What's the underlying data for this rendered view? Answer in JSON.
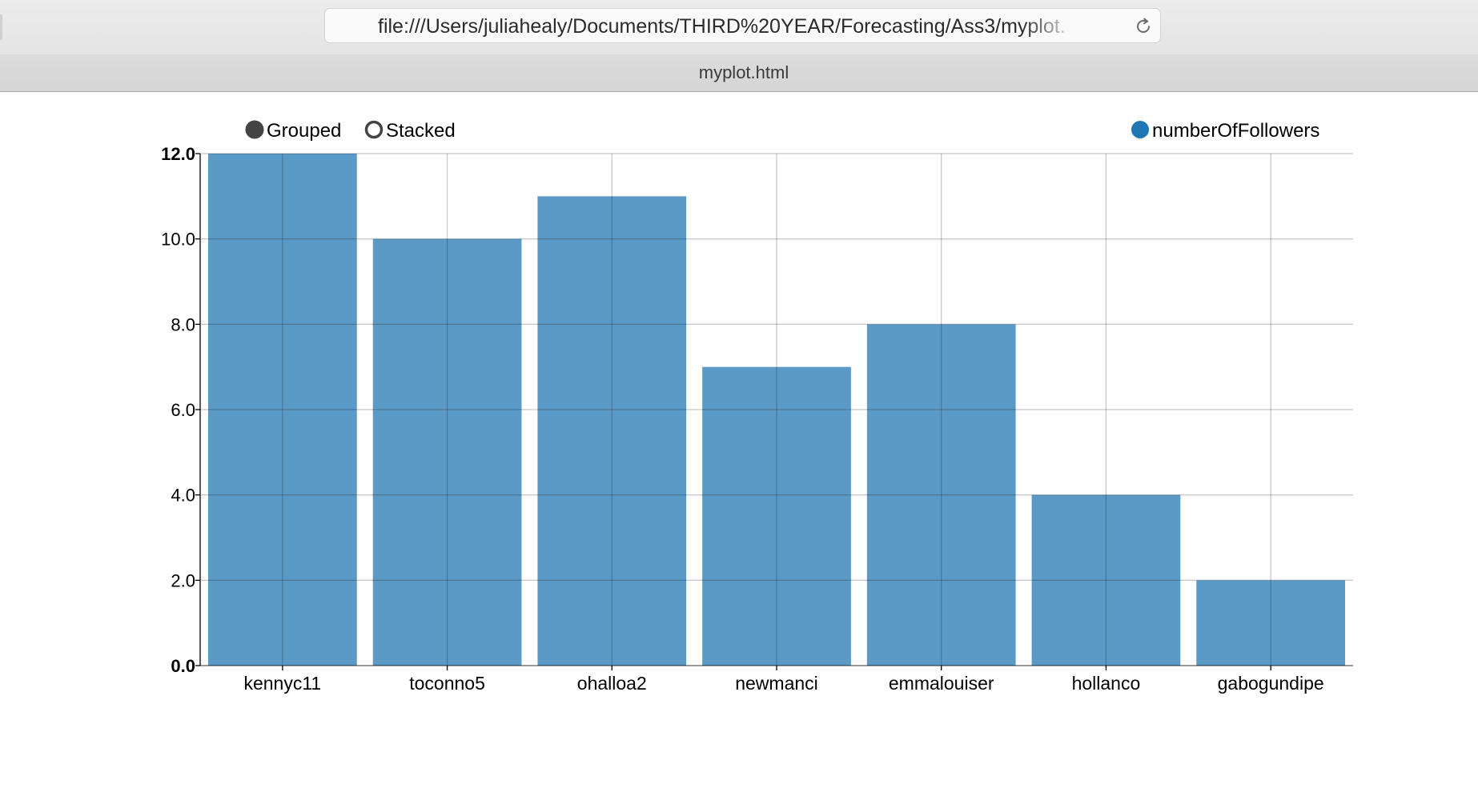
{
  "browser": {
    "url": "file:///Users/juliahealy/Documents/THIRD%20YEAR/Forecasting/Ass3/myplot.html",
    "tab_title": "myplot.html"
  },
  "controls": {
    "grouped_label": "Grouped",
    "stacked_label": "Stacked",
    "selected": "Grouped"
  },
  "legend": {
    "series_label": "numberOfFollowers",
    "color": "#1f77b4",
    "placement": "top-right"
  },
  "chart_data": {
    "type": "bar",
    "categories": [
      "kennyc11",
      "toconno5",
      "ohalloa2",
      "newmanci",
      "emmalouiser",
      "hollanco",
      "gabogundipe"
    ],
    "series": [
      {
        "name": "numberOfFollowers",
        "values": [
          12,
          10,
          11,
          7,
          8,
          4,
          2
        ],
        "color": "#5b9ac6"
      }
    ],
    "y_ticks": [
      "0.0",
      "2.0",
      "4.0",
      "6.0",
      "8.0",
      "10.0",
      "12.0"
    ],
    "ylim": [
      0,
      12
    ],
    "grid": true,
    "title": "",
    "xlabel": "",
    "ylabel": ""
  }
}
